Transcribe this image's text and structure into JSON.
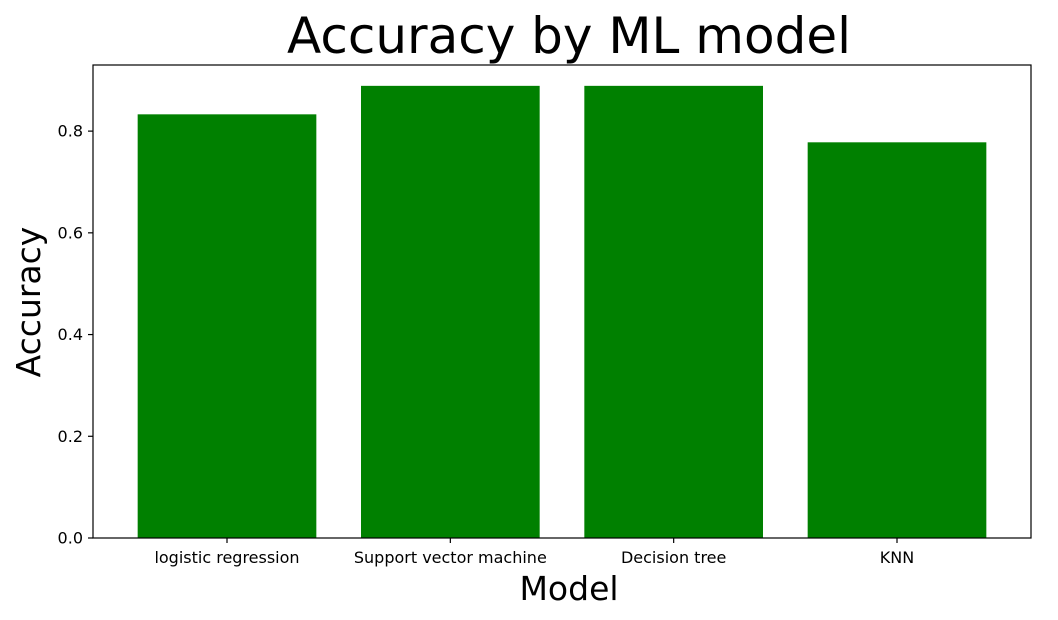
{
  "chart_data": {
    "type": "bar",
    "title": "Accuracy by ML model",
    "xlabel": "Model",
    "ylabel": "Accuracy",
    "categories": [
      "logistic regression",
      "Support vector machine",
      "Decision tree",
      "KNN"
    ],
    "values": [
      0.833,
      0.889,
      0.889,
      0.778
    ],
    "ylim": [
      0,
      0.93
    ],
    "yticks": [
      0.0,
      0.2,
      0.4,
      0.6,
      0.8
    ],
    "ytick_labels": [
      "0.0",
      "0.2",
      "0.4",
      "0.6",
      "0.8"
    ],
    "bar_color": "#008000",
    "grid": false,
    "legend": "none"
  }
}
